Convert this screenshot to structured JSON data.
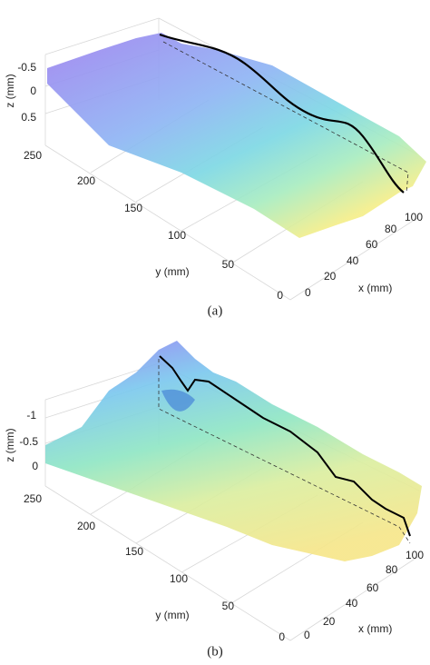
{
  "panels": [
    {
      "label": "(a)",
      "z_axis": {
        "title": "z (mm)",
        "ticks": [
          "-0.5",
          "0",
          "0.5"
        ]
      },
      "y_axis": {
        "title": "y (mm)",
        "ticks": [
          "250",
          "200",
          "150",
          "100",
          "50",
          "0"
        ]
      },
      "x_axis": {
        "title": "x (mm)",
        "ticks": [
          "0",
          "20",
          "40",
          "60",
          "80",
          "100"
        ]
      }
    },
    {
      "label": "(b)",
      "z_axis": {
        "title": "z (mm)",
        "ticks": [
          "-1",
          "-0.5",
          "0"
        ]
      },
      "y_axis": {
        "title": "y (mm)",
        "ticks": [
          "250",
          "200",
          "150",
          "100",
          "50",
          "0"
        ]
      },
      "x_axis": {
        "title": "x (mm)",
        "ticks": [
          "0",
          "20",
          "40",
          "60",
          "80",
          "100"
        ]
      }
    }
  ]
}
